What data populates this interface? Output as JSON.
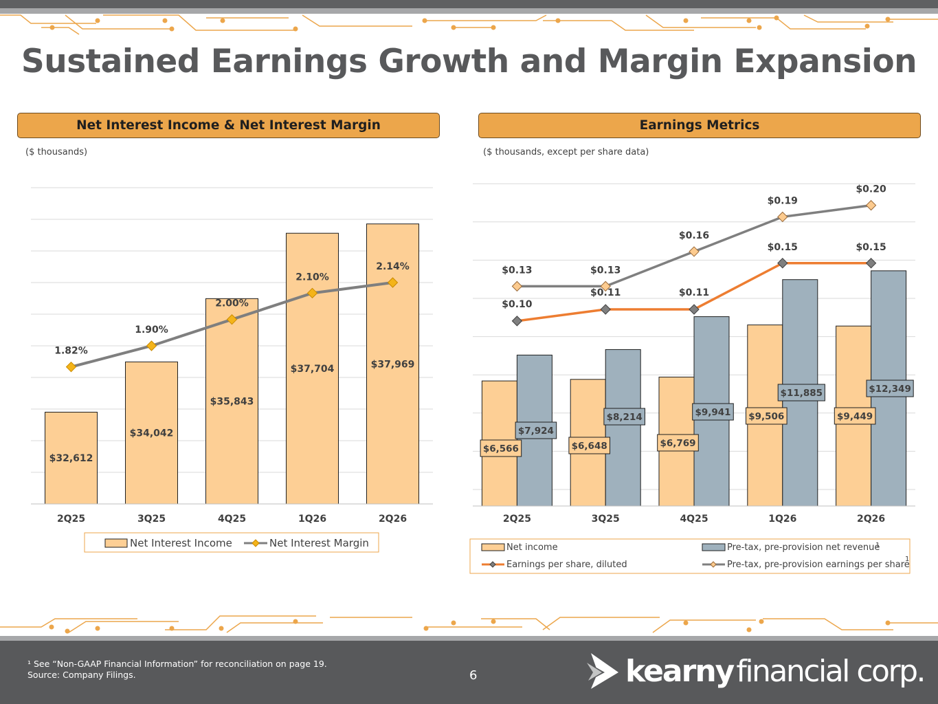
{
  "header": {
    "title": "Sustained Earnings Growth and Margin Expansion"
  },
  "left_panel": {
    "heading": "Net Interest Income & Net Interest Margin",
    "unit_note": "($ thousands)"
  },
  "right_panel": {
    "heading": "Earnings Metrics",
    "unit_note": "($ thousands, except per share data)"
  },
  "footer": {
    "footnote": "¹ See “Non-GAAP Financial Information” for reconciliation on page 19.",
    "source": "Source: Company Filings.",
    "page_number": "6",
    "brand_bold": "kearny",
    "brand_light": "financial corp."
  },
  "colors": {
    "bar_orange": "#fdcf95",
    "bar_gray": "#9fb1bd",
    "line_gray": "#7f7f7f",
    "line_orange": "#ed7d31",
    "diamond_gold": "#f4b41a",
    "diamond_light": "#fccb8f",
    "header_orange": "#eca64b"
  },
  "chart_data": [
    {
      "type": "bar",
      "categories": [
        "2Q25",
        "3Q25",
        "4Q25",
        "1Q26",
        "2Q26"
      ],
      "series": [
        {
          "name": "Net Interest Income",
          "kind": "bar",
          "axis": "left",
          "values": [
            32612,
            34042,
            35843,
            37704,
            37969
          ],
          "labels": [
            "$32,612",
            "$34,042",
            "$35,843",
            "$37,704",
            "$37,969"
          ]
        },
        {
          "name": "Net Interest Margin",
          "kind": "line",
          "axis": "right",
          "values": [
            1.82,
            1.9,
            2.0,
            2.1,
            2.14
          ],
          "labels": [
            "1.82%",
            "1.90%",
            "2.00%",
            "2.10%",
            "2.14%"
          ]
        }
      ],
      "ylim": [
        30000,
        39000
      ],
      "y2lim": [
        1.3,
        2.5
      ],
      "grid": true,
      "legend": "bottom"
    },
    {
      "type": "bar",
      "categories": [
        "2Q25",
        "3Q25",
        "4Q25",
        "1Q26",
        "2Q26"
      ],
      "series": [
        {
          "name": "Net income",
          "kind": "bar",
          "axis": "left",
          "values": [
            6566,
            6648,
            6769,
            9506,
            9449
          ],
          "labels": [
            "$6,566",
            "$6,648",
            "$6,769",
            "$9,506",
            "$9,449"
          ]
        },
        {
          "name": "Pre-tax, pre-provision net revenue",
          "superscript": "1",
          "kind": "bar",
          "axis": "left",
          "values": [
            7924,
            8214,
            9941,
            11885,
            12349
          ],
          "labels": [
            "$7,924",
            "$8,214",
            "$9,941",
            "$11,885",
            "$12,349"
          ]
        },
        {
          "name": "Earnings per share, diluted",
          "kind": "line",
          "axis": "right",
          "values": [
            0.1,
            0.11,
            0.11,
            0.15,
            0.15
          ],
          "labels": [
            "$0.10",
            "$0.11",
            "$0.11",
            "$0.15",
            "$0.15"
          ]
        },
        {
          "name": "Pre-tax, pre-provision earnings per share",
          "superscript": "1",
          "kind": "line",
          "axis": "right",
          "values": [
            0.13,
            0.13,
            0.16,
            0.19,
            0.2
          ],
          "labels": [
            "$0.13",
            "$0.13",
            "$0.16",
            "$0.19",
            "$0.20"
          ]
        }
      ],
      "ylim": [
        0,
        17000
      ],
      "y2lim": [
        -0.06,
        0.22
      ],
      "grid": true,
      "legend": "bottom"
    }
  ]
}
